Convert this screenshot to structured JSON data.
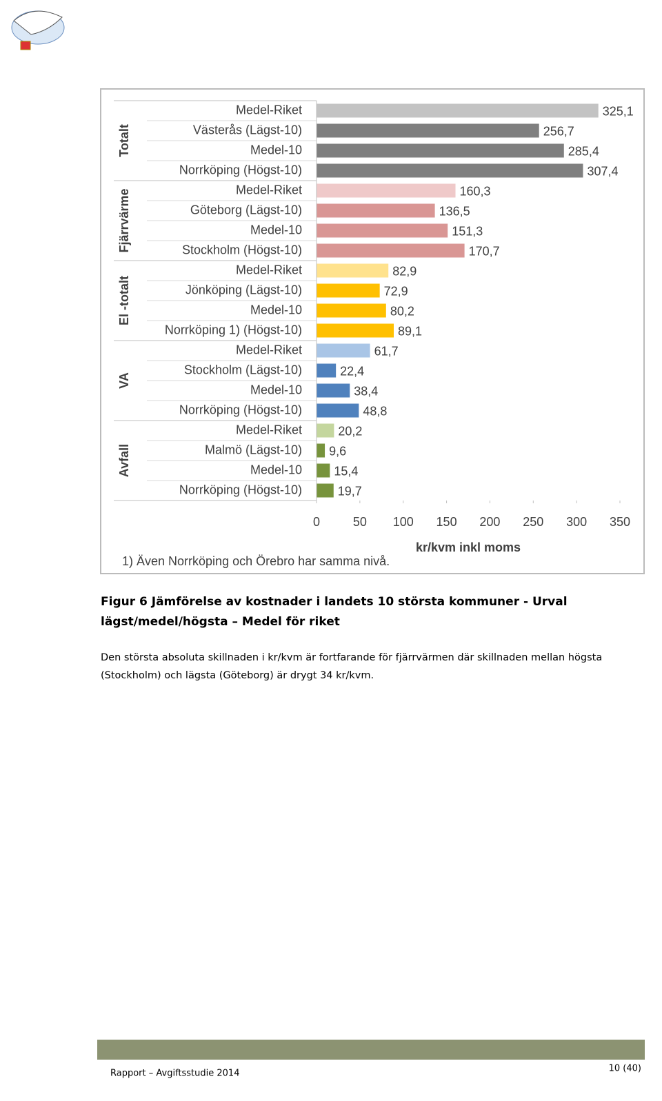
{
  "chart_data": {
    "type": "bar",
    "orientation": "horizontal",
    "groups": [
      {
        "name": "Totalt",
        "categories": [
          "Medel-Riket",
          "Västerås (Lägst-10)",
          "Medel-10",
          "Norrköping (Högst-10)"
        ],
        "values": [
          325.1,
          256.7,
          285.4,
          307.4
        ],
        "value_labels": [
          "325,1",
          "256,7",
          "285,4",
          "307,4"
        ],
        "colors": [
          "#c3c3c3",
          "#7f7f7f",
          "#7f7f7f",
          "#7f7f7f"
        ]
      },
      {
        "name": "Fjärrvärme",
        "categories": [
          "Medel-Riket",
          "Göteborg (Lägst-10)",
          "Medel-10",
          "Stockholm (Högst-10)"
        ],
        "values": [
          160.3,
          136.5,
          151.3,
          170.7
        ],
        "value_labels": [
          "160,3",
          "136,5",
          "151,3",
          "170,7"
        ],
        "colors": [
          "#efc9c9",
          "#d99694",
          "#d99694",
          "#d99694"
        ]
      },
      {
        "name": "El -totalt",
        "categories": [
          "Medel-Riket",
          "Jönköping (Lägst-10)",
          "Medel-10",
          "Norrköping 1) (Högst-10)"
        ],
        "values": [
          82.9,
          72.9,
          80.2,
          89.1
        ],
        "value_labels": [
          "82,9",
          "72,9",
          "80,2",
          "89,1"
        ],
        "colors": [
          "#ffe28d",
          "#ffc000",
          "#ffc000",
          "#ffc000"
        ]
      },
      {
        "name": "VA",
        "categories": [
          "Medel-Riket",
          "Stockholm (Lägst-10)",
          "Medel-10",
          "Norrköping (Högst-10)"
        ],
        "values": [
          61.7,
          22.4,
          38.4,
          48.8
        ],
        "value_labels": [
          "61,7",
          "22,4",
          "38,4",
          "48,8"
        ],
        "colors": [
          "#a9c5e6",
          "#4f81bd",
          "#4f81bd",
          "#4f81bd"
        ]
      },
      {
        "name": "Avfall",
        "categories": [
          "Medel-Riket",
          "Malmö (Lägst-10)",
          "Medel-10",
          "Norrköping (Högst-10)"
        ],
        "values": [
          20.2,
          9.6,
          15.4,
          19.7
        ],
        "value_labels": [
          "20,2",
          "9,6",
          "15,4",
          "19,7"
        ],
        "colors": [
          "#c4d69e",
          "#77933c",
          "#77933c",
          "#77933c"
        ]
      }
    ],
    "xlim": [
      0,
      350
    ],
    "xticks": [
      0,
      50,
      100,
      150,
      200,
      250,
      300,
      350
    ],
    "xlabel": "kr/kvm inkl moms",
    "footnote": "1) Även Norrköping och Örebro har samma nivå."
  },
  "caption": [
    "Figur 6 Jämförelse av kostnader i landets 10 största kommuner - Urval",
    "lägst/medel/högsta – Medel för riket"
  ],
  "paragraph": [
    "Den största absoluta skillnaden i kr/kvm är fortfarande för fjärrvärmen där skillnaden mellan högsta",
    "(Stockholm) och lägsta (Göteborg) är drygt 34 kr/kvm."
  ],
  "footer": {
    "text": "Rapport – Avgiftsstudie 2014",
    "page": "10 (40)"
  }
}
